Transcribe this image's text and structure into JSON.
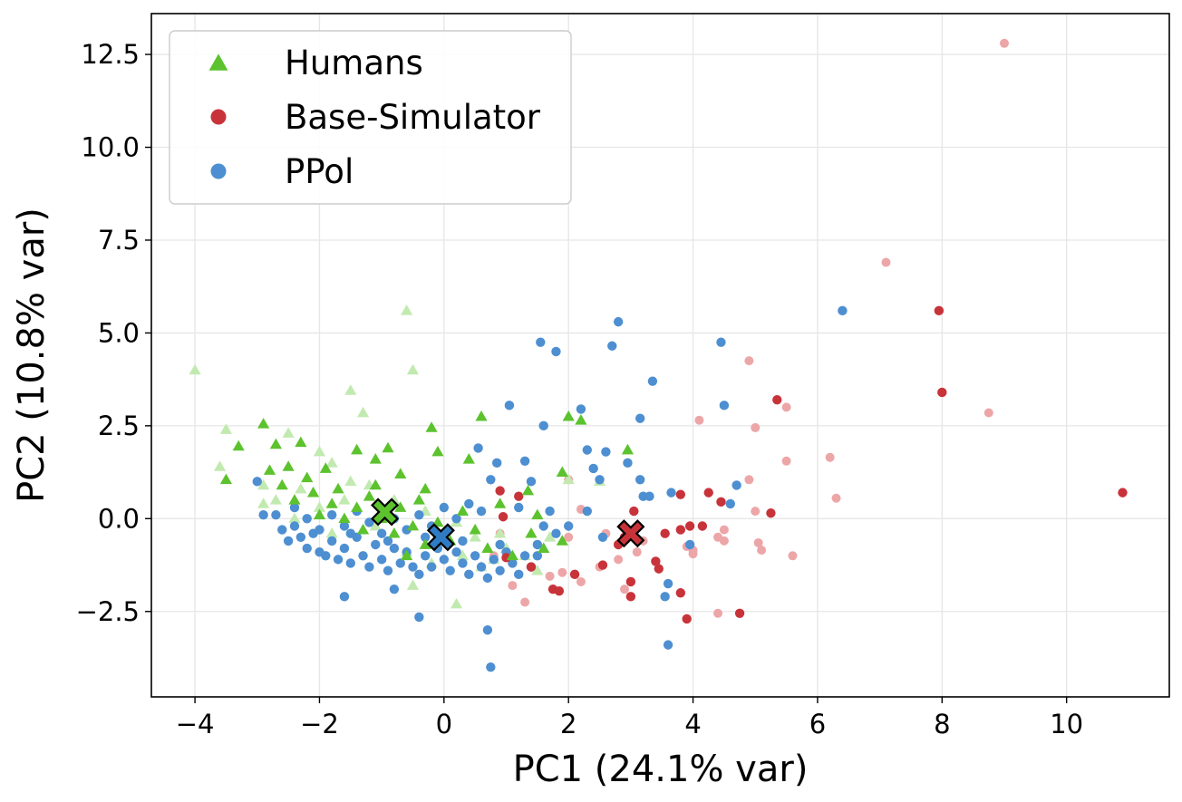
{
  "chart_data": {
    "type": "scatter",
    "xlabel": "PC1 (24.1% var)",
    "ylabel": "PC2 (10.8% var)",
    "xlim": [
      -4.7,
      11.65
    ],
    "ylim": [
      -4.8,
      13.6
    ],
    "xticks": [
      -4,
      -2,
      0,
      2,
      4,
      6,
      8,
      10
    ],
    "xtick_labels": [
      "−4",
      "−2",
      "0",
      "2",
      "4",
      "6",
      "8",
      "10"
    ],
    "yticks": [
      -2.5,
      0.0,
      2.5,
      5.0,
      7.5,
      10.0,
      12.5
    ],
    "ytick_labels": [
      "−2.5",
      "0.0",
      "2.5",
      "5.0",
      "7.5",
      "10.0",
      "12.5"
    ],
    "grid": true,
    "legend_position": "top-left",
    "legend": [
      {
        "label": "Humans",
        "marker": "triangle",
        "color": "#5cc22e"
      },
      {
        "label": "Base-Simulator",
        "marker": "circle",
        "color": "#c8333a"
      },
      {
        "label": "PPol",
        "marker": "circle",
        "color": "#4d8fd1"
      }
    ],
    "series": [
      {
        "name": "Humans",
        "marker": "triangle",
        "color": "#5cc22e",
        "light_color": "#c2eab0",
        "points_light": [
          [
            -4.0,
            4.0
          ],
          [
            -0.6,
            5.6
          ],
          [
            -0.5,
            4.0
          ],
          [
            -1.5,
            3.45
          ],
          [
            -1.3,
            2.85
          ],
          [
            -3.6,
            1.4
          ],
          [
            -3.5,
            2.4
          ],
          [
            -2.5,
            2.3
          ],
          [
            -2.0,
            1.8
          ],
          [
            -1.8,
            1.5
          ],
          [
            -1.5,
            1.0
          ],
          [
            -1.2,
            0.9
          ],
          [
            -0.8,
            0.5
          ],
          [
            -0.3,
            0.2
          ],
          [
            0.2,
            -0.1
          ],
          [
            0.5,
            -0.5
          ],
          [
            1.0,
            -0.8
          ],
          [
            1.3,
            -1.0
          ],
          [
            0.6,
            -1.3
          ],
          [
            0.2,
            -2.3
          ],
          [
            -0.5,
            -1.8
          ],
          [
            -2.9,
            0.9
          ],
          [
            -2.7,
            0.5
          ],
          [
            -2.3,
            0.8
          ],
          [
            -2.0,
            0.3
          ],
          [
            -1.6,
            0.5
          ],
          [
            -1.1,
            -0.2
          ],
          [
            -0.6,
            -0.9
          ],
          [
            -0.2,
            -1.2
          ],
          [
            0.3,
            -1.0
          ],
          [
            0.9,
            -0.4
          ],
          [
            1.7,
            -0.5
          ],
          [
            2.0,
            1.05
          ],
          [
            2.5,
            1.0
          ],
          [
            1.5,
            -1.4
          ],
          [
            0.8,
            -1.1
          ],
          [
            -1.8,
            -0.4
          ],
          [
            -2.4,
            0.0
          ],
          [
            -2.9,
            0.4
          ]
        ],
        "points_dark": [
          [
            -3.5,
            1.05
          ],
          [
            -3.3,
            1.95
          ],
          [
            -2.9,
            2.55
          ],
          [
            -2.7,
            2.0
          ],
          [
            -2.5,
            1.4
          ],
          [
            -2.3,
            2.05
          ],
          [
            -2.2,
            1.1
          ],
          [
            -1.9,
            1.35
          ],
          [
            -1.7,
            0.8
          ],
          [
            -1.4,
            1.85
          ],
          [
            -1.1,
            1.6
          ],
          [
            -0.9,
            1.9
          ],
          [
            -0.7,
            1.2
          ],
          [
            -0.2,
            2.45
          ],
          [
            -0.1,
            1.8
          ],
          [
            0.4,
            1.6
          ],
          [
            0.6,
            2.75
          ],
          [
            0.9,
            0.4
          ],
          [
            1.35,
            0.75
          ],
          [
            1.5,
            0.1
          ],
          [
            1.9,
            1.25
          ],
          [
            2.0,
            2.75
          ],
          [
            2.2,
            2.65
          ],
          [
            2.95,
            1.85
          ],
          [
            -2.8,
            1.3
          ],
          [
            -2.6,
            0.9
          ],
          [
            -2.4,
            0.5
          ],
          [
            -2.1,
            0.7
          ],
          [
            -2.0,
            0.1
          ],
          [
            -1.8,
            0.4
          ],
          [
            -1.6,
            0.0
          ],
          [
            -1.4,
            0.3
          ],
          [
            -1.3,
            -0.3
          ],
          [
            -1.2,
            0.6
          ],
          [
            -1.0,
            0.0
          ],
          [
            -0.8,
            -0.4
          ],
          [
            -0.7,
            0.3
          ],
          [
            -0.5,
            -0.2
          ],
          [
            -0.4,
            0.5
          ],
          [
            -0.3,
            -0.7
          ],
          [
            -0.1,
            -0.1
          ],
          [
            0.1,
            -0.6
          ],
          [
            0.3,
            0.2
          ],
          [
            0.5,
            -0.3
          ],
          [
            0.7,
            -0.8
          ],
          [
            1.1,
            -1.0
          ],
          [
            1.4,
            -0.4
          ],
          [
            1.9,
            -0.6
          ],
          [
            1.6,
            -0.8
          ],
          [
            -0.6,
            -1.0
          ],
          [
            -1.1,
            0.9
          ],
          [
            -0.3,
            0.8
          ]
        ],
        "centroid": [
          -0.95,
          0.18
        ]
      },
      {
        "name": "Base-Simulator",
        "marker": "circle",
        "color": "#c8333a",
        "light_color": "#eda6a8",
        "points_light": [
          [
            9.0,
            12.8
          ],
          [
            7.1,
            6.9
          ],
          [
            8.75,
            2.85
          ],
          [
            4.9,
            4.25
          ],
          [
            4.1,
            2.65
          ],
          [
            5.0,
            2.45
          ],
          [
            5.5,
            3.0
          ],
          [
            5.5,
            1.55
          ],
          [
            6.2,
            1.65
          ],
          [
            6.3,
            0.55
          ],
          [
            4.9,
            1.05
          ],
          [
            5.0,
            0.2
          ],
          [
            5.05,
            -0.65
          ],
          [
            5.1,
            -0.85
          ],
          [
            5.6,
            -1.0
          ],
          [
            4.4,
            -0.5
          ],
          [
            4.5,
            -0.6
          ],
          [
            3.9,
            -0.75
          ],
          [
            4.0,
            -0.95
          ],
          [
            3.2,
            -0.6
          ],
          [
            3.1,
            -0.9
          ],
          [
            2.8,
            -1.1
          ],
          [
            2.5,
            -1.3
          ],
          [
            2.2,
            -1.7
          ],
          [
            1.9,
            -1.45
          ],
          [
            1.7,
            -1.55
          ],
          [
            2.0,
            -0.5
          ],
          [
            2.6,
            -0.4
          ],
          [
            2.9,
            -1.9
          ],
          [
            2.0,
            1.05
          ],
          [
            1.3,
            -2.25
          ],
          [
            1.1,
            -1.8
          ],
          [
            0.9,
            -0.4
          ],
          [
            0.8,
            -1.0
          ],
          [
            2.2,
            0.25
          ],
          [
            4.4,
            -2.55
          ],
          [
            4.0,
            -0.85
          ],
          [
            4.5,
            -0.3
          ]
        ],
        "points_dark": [
          [
            7.95,
            5.6
          ],
          [
            8.0,
            3.4
          ],
          [
            10.9,
            0.7
          ],
          [
            5.35,
            3.2
          ],
          [
            5.25,
            0.15
          ],
          [
            4.25,
            0.7
          ],
          [
            4.45,
            0.45
          ],
          [
            3.8,
            0.65
          ],
          [
            3.55,
            -0.4
          ],
          [
            3.95,
            -0.2
          ],
          [
            4.15,
            -0.2
          ],
          [
            3.8,
            -0.3
          ],
          [
            3.4,
            -1.15
          ],
          [
            3.45,
            -1.35
          ],
          [
            3.0,
            -1.7
          ],
          [
            3.0,
            -2.1
          ],
          [
            3.8,
            -2.0
          ],
          [
            3.9,
            -2.7
          ],
          [
            4.75,
            -2.55
          ],
          [
            3.05,
            0.2
          ],
          [
            2.9,
            -0.5
          ],
          [
            2.55,
            -1.25
          ],
          [
            2.1,
            -1.5
          ],
          [
            1.75,
            -1.9
          ],
          [
            1.4,
            -1.3
          ],
          [
            1.0,
            -1.05
          ],
          [
            0.9,
            0.75
          ],
          [
            1.2,
            0.6
          ],
          [
            0.95,
            0.05
          ],
          [
            2.8,
            -0.7
          ],
          [
            1.85,
            -1.95
          ]
        ],
        "centroid": [
          3.0,
          -0.4
        ]
      },
      {
        "name": "PPol",
        "marker": "circle",
        "color": "#4d8fd1",
        "points": [
          [
            6.4,
            5.6
          ],
          [
            2.8,
            5.3
          ],
          [
            1.55,
            4.75
          ],
          [
            1.8,
            4.5
          ],
          [
            2.7,
            4.65
          ],
          [
            4.45,
            4.75
          ],
          [
            3.35,
            3.7
          ],
          [
            4.5,
            3.05
          ],
          [
            3.15,
            2.7
          ],
          [
            2.2,
            2.95
          ],
          [
            1.6,
            2.5
          ],
          [
            1.05,
            3.05
          ],
          [
            0.75,
            1.05
          ],
          [
            0.55,
            1.9
          ],
          [
            0.85,
            1.5
          ],
          [
            1.3,
            1.55
          ],
          [
            1.4,
            1.0
          ],
          [
            2.3,
            1.85
          ],
          [
            2.6,
            1.8
          ],
          [
            2.4,
            1.35
          ],
          [
            2.95,
            1.5
          ],
          [
            3.15,
            1.05
          ],
          [
            2.5,
            1.05
          ],
          [
            3.2,
            0.6
          ],
          [
            3.3,
            0.6
          ],
          [
            4.7,
            0.9
          ],
          [
            4.6,
            0.4
          ],
          [
            3.65,
            0.7
          ],
          [
            3.6,
            -1.75
          ],
          [
            3.55,
            -2.1
          ],
          [
            3.6,
            -3.4
          ],
          [
            2.55,
            -0.5
          ],
          [
            0.7,
            -3.0
          ],
          [
            0.75,
            -4.0
          ],
          [
            -0.4,
            -2.65
          ],
          [
            -0.8,
            -1.9
          ],
          [
            -1.6,
            -2.1
          ],
          [
            3.95,
            -0.7
          ],
          [
            -3.0,
            1.0
          ],
          [
            -2.9,
            0.1
          ],
          [
            -2.7,
            0.1
          ],
          [
            -2.6,
            -0.3
          ],
          [
            -2.5,
            -0.6
          ],
          [
            -2.4,
            -0.2
          ],
          [
            -2.3,
            -0.5
          ],
          [
            -2.2,
            -0.8
          ],
          [
            -2.1,
            -0.4
          ],
          [
            -2.0,
            -0.9
          ],
          [
            -1.9,
            -1.0
          ],
          [
            -1.8,
            -0.6
          ],
          [
            -1.7,
            -1.1
          ],
          [
            -1.6,
            -0.8
          ],
          [
            -1.5,
            -1.2
          ],
          [
            -1.4,
            -0.5
          ],
          [
            -1.3,
            -1.0
          ],
          [
            -1.2,
            -1.3
          ],
          [
            -1.1,
            -0.7
          ],
          [
            -1.0,
            -1.1
          ],
          [
            -0.9,
            -1.4
          ],
          [
            -0.8,
            -0.8
          ],
          [
            -0.7,
            -1.2
          ],
          [
            -0.6,
            -0.9
          ],
          [
            -0.5,
            -1.3
          ],
          [
            -0.4,
            -1.5
          ],
          [
            -0.3,
            -1.0
          ],
          [
            -0.2,
            -1.3
          ],
          [
            -0.1,
            -0.8
          ],
          [
            0.0,
            -1.1
          ],
          [
            0.1,
            -1.4
          ],
          [
            0.2,
            -0.9
          ],
          [
            0.3,
            -1.2
          ],
          [
            0.4,
            -1.5
          ],
          [
            0.5,
            -1.0
          ],
          [
            0.6,
            -1.3
          ],
          [
            0.7,
            -1.6
          ],
          [
            0.8,
            -1.1
          ],
          [
            0.9,
            -1.4
          ],
          [
            1.0,
            -0.9
          ],
          [
            1.1,
            -1.2
          ],
          [
            1.2,
            -1.5
          ],
          [
            1.3,
            -1.0
          ],
          [
            1.4,
            -1.3
          ],
          [
            1.5,
            -0.7
          ],
          [
            1.6,
            -0.2
          ],
          [
            1.7,
            0.2
          ],
          [
            1.8,
            -0.4
          ],
          [
            0.4,
            0.4
          ],
          [
            0.2,
            0.0
          ],
          [
            0.0,
            0.3
          ],
          [
            -0.2,
            -0.2
          ],
          [
            -0.4,
            0.1
          ],
          [
            -0.6,
            -0.3
          ],
          [
            -0.8,
            0.0
          ],
          [
            -1.0,
            -0.4
          ],
          [
            -1.2,
            -0.1
          ],
          [
            -1.4,
            0.2
          ],
          [
            -1.6,
            -0.2
          ],
          [
            -1.8,
            0.1
          ],
          [
            -2.0,
            -0.3
          ],
          [
            -2.2,
            0.0
          ],
          [
            -2.4,
            0.3
          ],
          [
            -1.5,
            -0.4
          ],
          [
            -0.9,
            -0.6
          ],
          [
            -0.3,
            -0.5
          ],
          [
            0.3,
            -0.6
          ],
          [
            0.9,
            -0.7
          ],
          [
            1.5,
            -1.0
          ],
          [
            2.0,
            -0.2
          ],
          [
            2.3,
            0.2
          ],
          [
            1.2,
            0.3
          ],
          [
            0.6,
            0.2
          ]
        ],
        "centroid": [
          -0.05,
          -0.5
        ]
      }
    ]
  }
}
